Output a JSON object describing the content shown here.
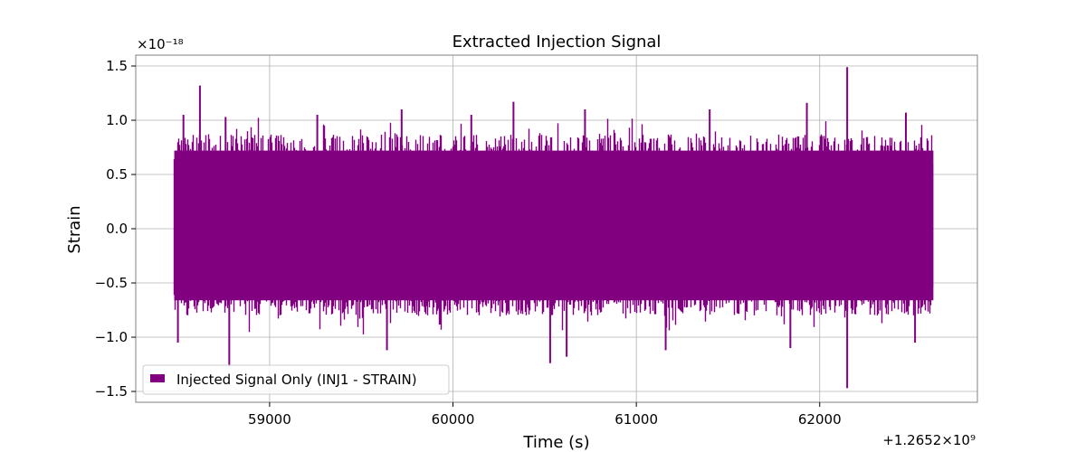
{
  "chart_data": {
    "type": "line",
    "title": "Extracted Injection Signal",
    "xlabel": "Time (s)",
    "ylabel": "Strain",
    "x_offset_label": "+1.2652×10⁹",
    "y_multiplier_label": "×10⁻¹⁸",
    "xlim": [
      58270,
      62860
    ],
    "ylim": [
      -1.6,
      1.6
    ],
    "x_ticks": [
      59000,
      60000,
      61000,
      62000
    ],
    "x_tick_labels": [
      "59000",
      "60000",
      "61000",
      "62000"
    ],
    "y_ticks": [
      -1.5,
      -1.0,
      -0.5,
      0.0,
      0.5,
      1.0,
      1.5
    ],
    "y_tick_labels": [
      "−1.5",
      "−1.0",
      "−0.5",
      "0.0",
      "0.5",
      "1.0",
      "1.5"
    ],
    "grid": true,
    "legend_position": "lower-left",
    "series": [
      {
        "name": "Injected Signal Only (INJ1 - STRAIN)",
        "color": "#800080",
        "x_range": [
          58480,
          62620
        ],
        "typical_envelope": [
          -0.8,
          0.87
        ],
        "peaks_max": [
          {
            "x": 58530,
            "y": 1.05
          },
          {
            "x": 58620,
            "y": 1.32
          },
          {
            "x": 58760,
            "y": 1.03
          },
          {
            "x": 59260,
            "y": 1.05
          },
          {
            "x": 59720,
            "y": 1.1
          },
          {
            "x": 60100,
            "y": 1.05
          },
          {
            "x": 60330,
            "y": 1.17
          },
          {
            "x": 60720,
            "y": 1.1
          },
          {
            "x": 61400,
            "y": 1.1
          },
          {
            "x": 61930,
            "y": 1.16
          },
          {
            "x": 62150,
            "y": 1.49
          },
          {
            "x": 62470,
            "y": 1.07
          }
        ],
        "peaks_min": [
          {
            "x": 58500,
            "y": -1.05
          },
          {
            "x": 58780,
            "y": -1.27
          },
          {
            "x": 59640,
            "y": -1.12
          },
          {
            "x": 60530,
            "y": -1.24
          },
          {
            "x": 60620,
            "y": -1.18
          },
          {
            "x": 61160,
            "y": -1.12
          },
          {
            "x": 61840,
            "y": -1.1
          },
          {
            "x": 62150,
            "y": -1.47
          },
          {
            "x": 62520,
            "y": -1.05
          }
        ]
      }
    ]
  }
}
